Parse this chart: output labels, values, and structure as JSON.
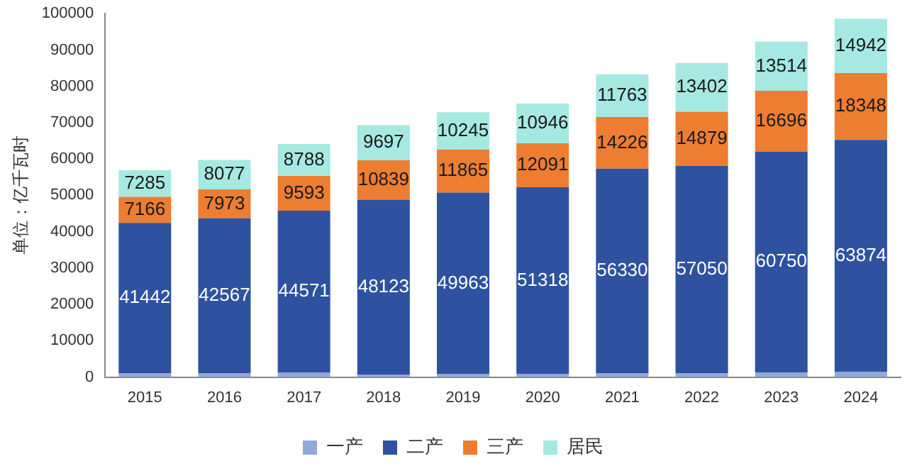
{
  "chart_data": {
    "type": "bar",
    "stacked": true,
    "ylabel": "单位：亿千瓦时",
    "categories": [
      "2015",
      "2016",
      "2017",
      "2018",
      "2019",
      "2020",
      "2021",
      "2022",
      "2023",
      "2024"
    ],
    "series": [
      {
        "name": "一产",
        "color": "#8eaadc",
        "values": [
          1000,
          1100,
          1200,
          700,
          800,
          900,
          1000,
          1100,
          1300,
          1400
        ]
      },
      {
        "name": "二产",
        "color": "#2e52a0",
        "values": [
          41442,
          42567,
          44571,
          48123,
          49963,
          51318,
          56330,
          57050,
          60750,
          63874
        ],
        "value_labels": [
          "41442",
          "42567",
          "44571",
          "48123",
          "49963",
          "51318",
          "56330",
          "57050",
          "60750",
          "63874"
        ]
      },
      {
        "name": "三产",
        "color": "#ed7d31",
        "values": [
          7166,
          7973,
          9593,
          10839,
          11865,
          12091,
          14226,
          14879,
          16696,
          18348
        ],
        "value_labels": [
          "7166",
          "7973",
          "9593",
          "10839",
          "11865",
          "12091",
          "14226",
          "14879",
          "16696",
          "18348"
        ]
      },
      {
        "name": "居民",
        "color": "#a6e9e3",
        "values": [
          7285,
          8077,
          8788,
          9697,
          10245,
          10946,
          11763,
          13402,
          13514,
          14942
        ],
        "value_labels": [
          "7285",
          "8077",
          "8788",
          "9697",
          "10245",
          "10946",
          "11763",
          "13402",
          "13514",
          "14942"
        ]
      }
    ],
    "ylim": [
      0,
      100000
    ],
    "yticks": [
      0,
      10000,
      20000,
      30000,
      40000,
      50000,
      60000,
      70000,
      80000,
      90000,
      100000
    ],
    "grid": false,
    "legend": "bottom"
  }
}
